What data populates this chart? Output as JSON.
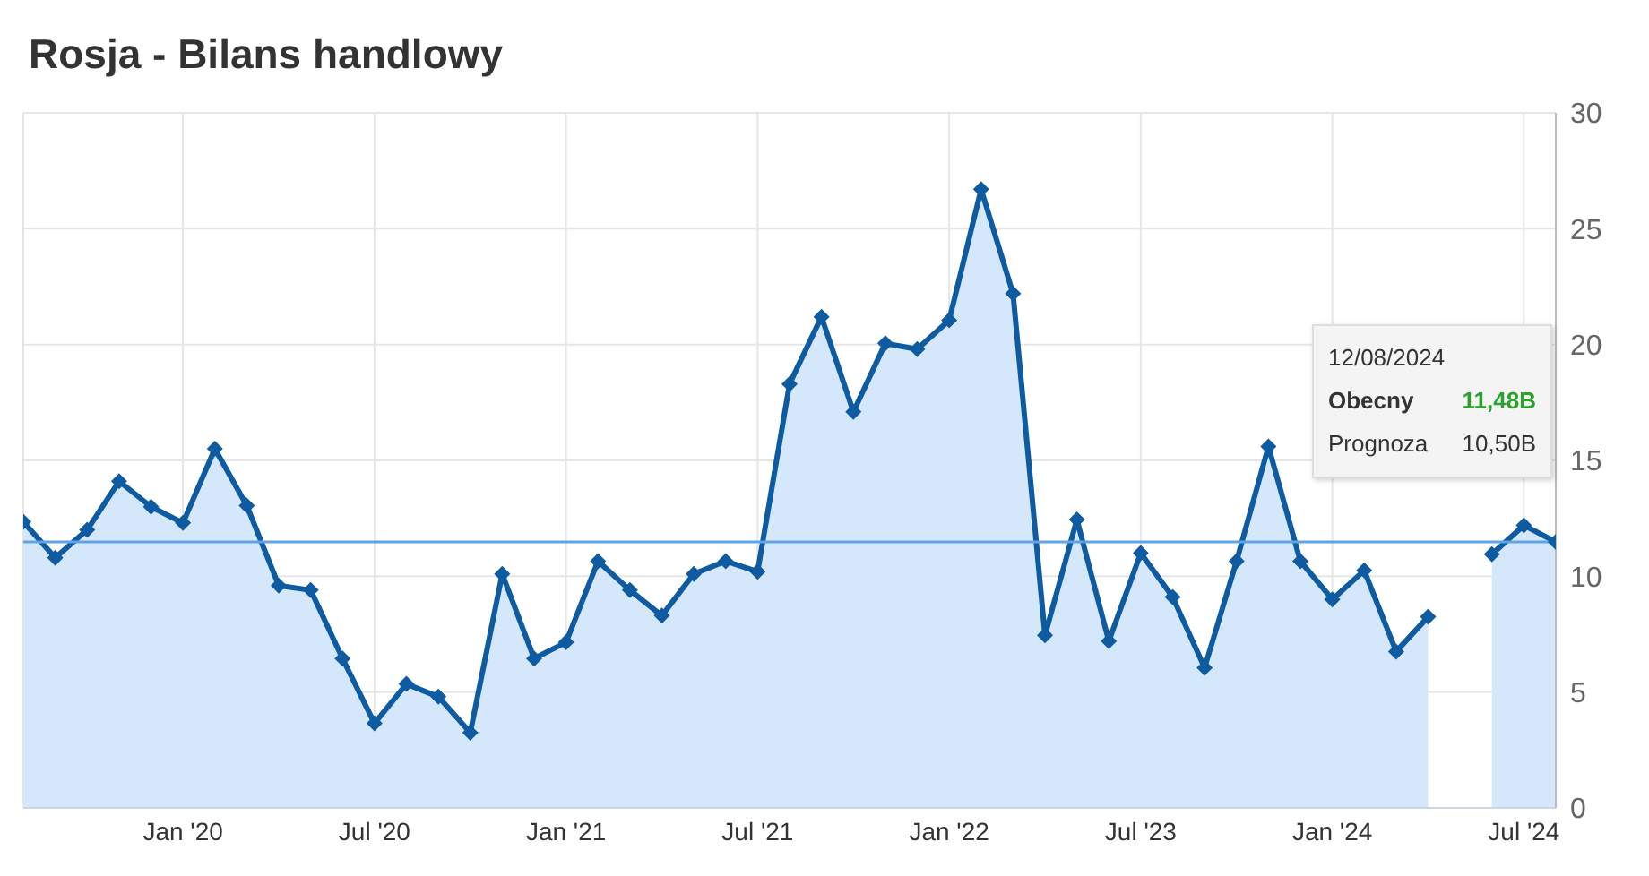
{
  "chart_data": {
    "type": "area",
    "title": "Rosja - Bilans handlowy",
    "categories": [
      null,
      null,
      null,
      null,
      null,
      "Jan '20",
      null,
      null,
      null,
      null,
      null,
      "Jul '20",
      null,
      null,
      null,
      null,
      null,
      "Jan '21",
      null,
      null,
      null,
      null,
      null,
      "Jul '21",
      null,
      null,
      null,
      null,
      null,
      "Jan '22",
      null,
      null,
      null,
      null,
      null,
      "Jul '23",
      null,
      null,
      null,
      null,
      null,
      "Jan '24",
      null,
      null,
      null,
      null,
      null,
      "Jul '24",
      null
    ],
    "series": [
      {
        "color": "#0f5ba1",
        "values": [
          12.35,
          10.8,
          12.0,
          14.1,
          13.0,
          12.3,
          15.5,
          13.05,
          9.6,
          9.4,
          6.45,
          3.65,
          5.35,
          4.8,
          3.25,
          10.1,
          6.45,
          7.15,
          10.65,
          9.4,
          8.3,
          10.1,
          10.65,
          10.2,
          18.3,
          21.2,
          17.1,
          20.05,
          19.8,
          21.05,
          26.7,
          22.2,
          7.45,
          12.45,
          7.2,
          11.0,
          9.1,
          6.05,
          10.65,
          15.6,
          10.65,
          9.0,
          10.25,
          6.75,
          8.25,
          null,
          10.95,
          12.2,
          11.48
        ]
      }
    ],
    "ylim": [
      0,
      30
    ],
    "yticks": [
      0,
      5,
      10,
      15,
      20,
      25,
      30
    ],
    "grid": true,
    "marker": "diamond",
    "ref_lines": [
      {
        "axis": "y",
        "value": 11.48,
        "color": "#5fa4e6"
      }
    ],
    "annotations": [
      "12/08/2024",
      "Obecny",
      "11,48B",
      "Prognoza",
      "10,50B"
    ]
  }
}
